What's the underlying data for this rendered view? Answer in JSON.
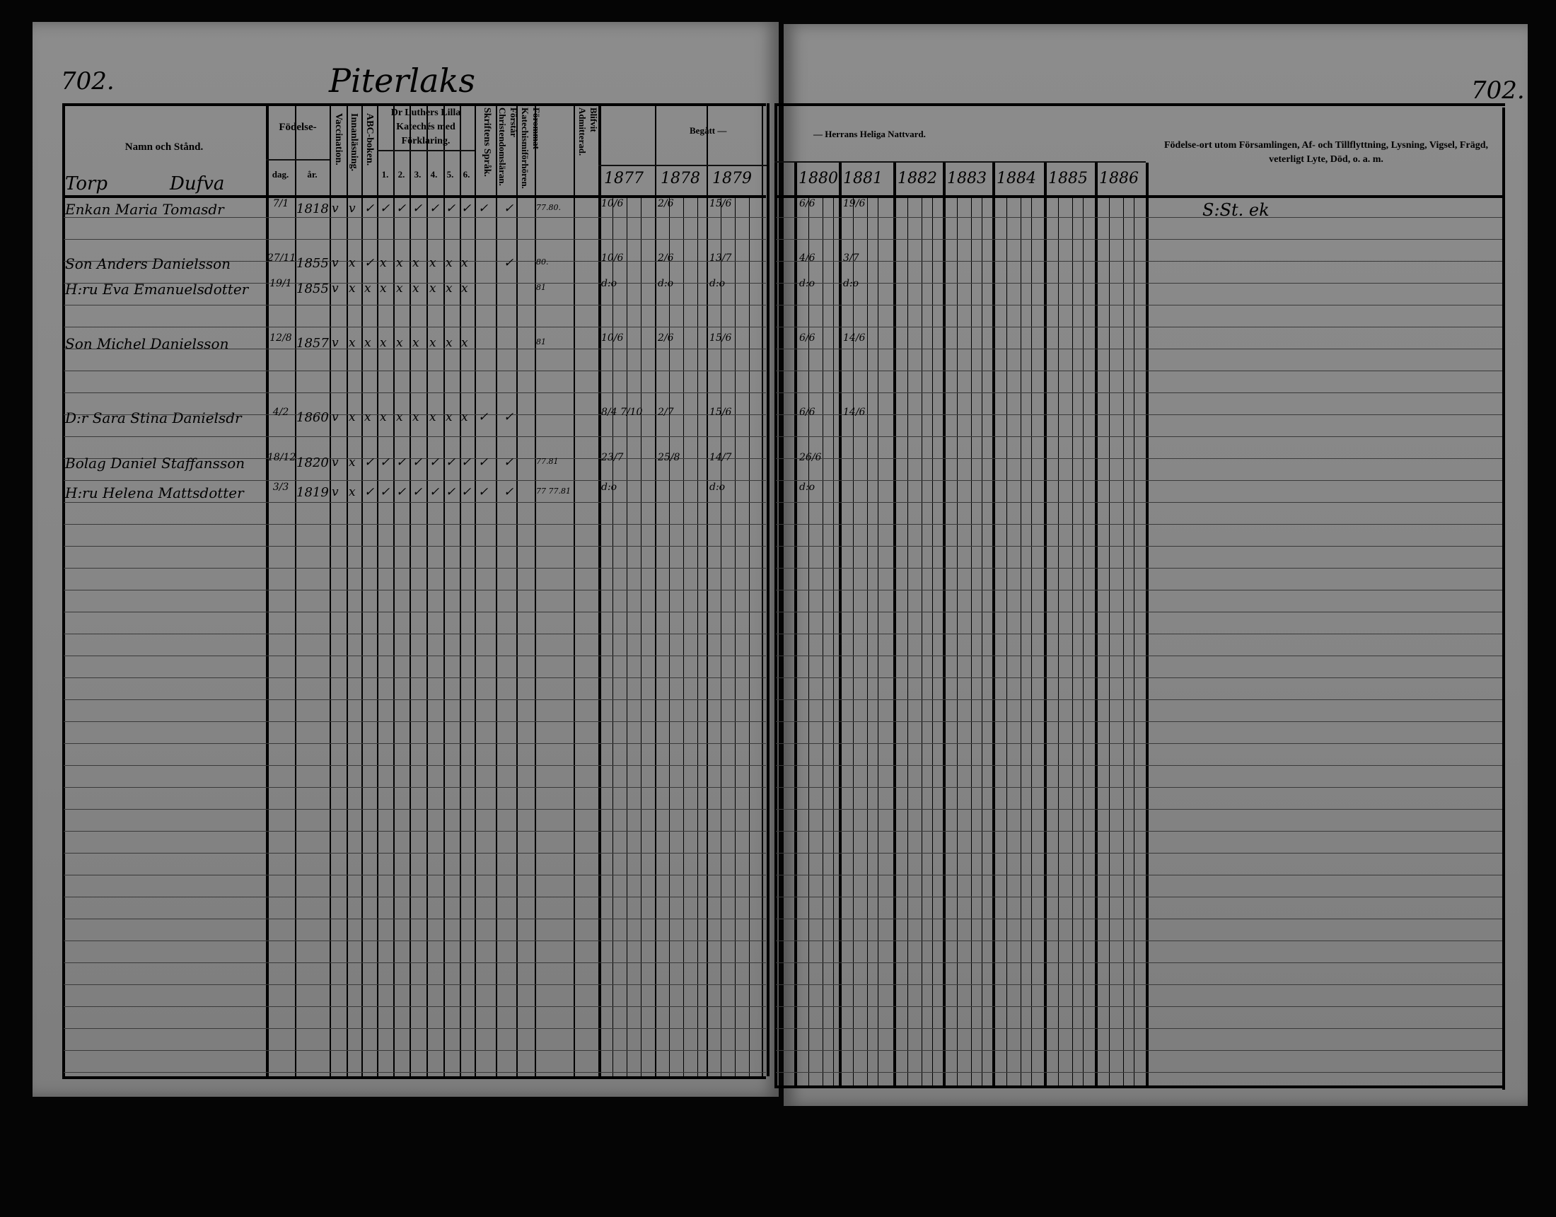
{
  "left_page": {
    "page_number": "702.",
    "parish_heading": "Piterlaks",
    "village": "Torp",
    "farm": "Dufva",
    "headers": {
      "name": "Namn och Stånd.",
      "birth": "Födelse-",
      "birth_day": "dag.",
      "birth_year": "år.",
      "vaccination": "Vaccination.",
      "reading": "Innanläsning.",
      "abc": "ABC-boken.",
      "catechism": "Dr Luthers Lilla Katechés med Förklaring.",
      "catechism_parts": [
        "1.",
        "2.",
        "3.",
        "4.",
        "5.",
        "6."
      ],
      "scripture": "Skriftens Språk.",
      "christianity": "Förstår Christendomsläran.",
      "examinations": "Förommat Katechismiförhören.",
      "admitted": "Blifvit Admitterad.",
      "communion_left": "Begått —",
      "years": [
        "1877",
        "1878",
        "1879"
      ]
    }
  },
  "right_page": {
    "page_number": "702.",
    "headers": {
      "communion_right": "— Herrans Heliga Nattvard.",
      "years": [
        "1880",
        "1881",
        "1882",
        "1883",
        "1884",
        "1885",
        "1886"
      ],
      "remarks": "Födelse-ort utom Församlingen, Af- och Tillflyttning, Lysning, Vigsel, Frägd, veterligt Lyte, Död, o. a. m."
    }
  },
  "entries": [
    {
      "name": "Enkan Maria Tomasdr",
      "day": "7/1",
      "year": "1818",
      "marks": [
        "v",
        "v",
        "✓",
        "✓",
        "✓",
        "✓",
        "✓",
        "✓",
        "✓",
        "✓",
        "✓"
      ],
      "exam": "77.80.",
      "communion": {
        "1877": "10/6",
        "1878": "2/6",
        "1879": "15/6",
        "1880": "6/6",
        "1881": "19/6"
      },
      "remark": "S:St. ek"
    },
    {
      "name": "Son Anders Danielsson",
      "day": "27/11",
      "year": "1855",
      "marks": [
        "v",
        "x",
        "✓",
        "x",
        "x",
        "x",
        "x",
        "x",
        "x",
        "",
        "✓"
      ],
      "exam": "80.",
      "communion": {
        "1877": "10/6",
        "1878": "2/6",
        "1879": "13/7",
        "1880": "4/6",
        "1881": "3/7"
      },
      "remark": ""
    },
    {
      "name": "H:ru Eva Emanuelsdotter",
      "day": "19/1",
      "year": "1855",
      "marks": [
        "v",
        "x",
        "x",
        "x",
        "x",
        "x",
        "x",
        "x",
        "x",
        "",
        ""
      ],
      "exam": "81",
      "communion": {
        "1877": "d:o",
        "1878": "d:o",
        "1879": "d:o",
        "1880": "d:o",
        "1881": "d:o"
      },
      "remark": ""
    },
    {
      "name": "Son Michel Danielsson",
      "day": "12/8",
      "year": "1857",
      "marks": [
        "v",
        "x",
        "x",
        "x",
        "x",
        "x",
        "x",
        "x",
        "x",
        "",
        ""
      ],
      "exam": "81",
      "communion": {
        "1877": "10/6",
        "1878": "2/6",
        "1879": "15/6",
        "1880": "6/6",
        "1881": "14/6"
      },
      "remark": ""
    },
    {
      "name": "D:r Sara Stina Danielsdr",
      "day": "4/2",
      "year": "1860",
      "marks": [
        "v",
        "x",
        "x",
        "x",
        "x",
        "x",
        "x",
        "x",
        "x",
        "✓",
        "✓"
      ],
      "exam": "",
      "communion": {
        "1877": "8/4 7/10",
        "1878": "2/7",
        "1879": "15/6",
        "1880": "6/6",
        "1881": "14/6"
      },
      "remark": ""
    },
    {
      "name": "Bolag Daniel Staffansson",
      "day": "18/12",
      "year": "1820",
      "marks": [
        "v",
        "x",
        "✓",
        "✓",
        "✓",
        "✓",
        "✓",
        "✓",
        "✓",
        "✓",
        "✓"
      ],
      "exam": "77.81",
      "communion": {
        "1877": "23/7",
        "1878": "25/8",
        "1879": "14/7",
        "1880": "26/6"
      },
      "remark": ""
    },
    {
      "name": "H:ru Helena Mattsdotter",
      "day": "3/3",
      "year": "1819",
      "marks": [
        "v",
        "x",
        "✓",
        "✓",
        "✓",
        "✓",
        "✓",
        "✓",
        "✓",
        "✓",
        "✓"
      ],
      "exam": "77 77.81",
      "communion": {
        "1877": "d:o",
        "1879": "d:o",
        "1880": "d:o"
      },
      "remark": ""
    }
  ],
  "colors": {
    "paper": "#888888",
    "ink": "#000000",
    "background": "#050505"
  }
}
